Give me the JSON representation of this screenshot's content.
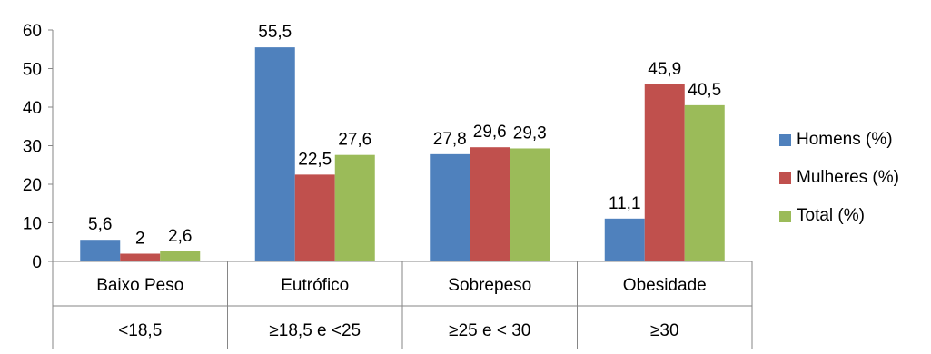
{
  "chart_data": {
    "type": "bar",
    "title": "",
    "categories": [
      "Baixo Peso",
      "Eutrófico",
      "Sobrepeso",
      "Obesidade"
    ],
    "sub_categories": [
      "<18,5",
      "≥18,5 e <25",
      "≥25 e < 30",
      "≥30"
    ],
    "series": [
      {
        "name": "Homens (%)",
        "values": [
          5.6,
          55.5,
          27.8,
          11.1
        ],
        "color": "#4F81BD",
        "labels": [
          "5,6",
          "55,5",
          "27,8",
          "11,1"
        ]
      },
      {
        "name": "Mulheres (%)",
        "values": [
          2,
          22.5,
          29.6,
          45.9
        ],
        "color": "#C0504D",
        "labels": [
          "2",
          "22,5",
          "29,6",
          "45,9"
        ]
      },
      {
        "name": "Total (%)",
        "values": [
          2.6,
          27.6,
          29.3,
          40.5
        ],
        "color": "#9BBB59",
        "labels": [
          "2,6",
          "27,6",
          "29,3",
          "40,5"
        ]
      }
    ],
    "ylim": [
      0,
      60
    ],
    "yticks": [
      "0",
      "10",
      "20",
      "30",
      "40",
      "50",
      "60"
    ],
    "grid": false,
    "legend_position": "right"
  }
}
